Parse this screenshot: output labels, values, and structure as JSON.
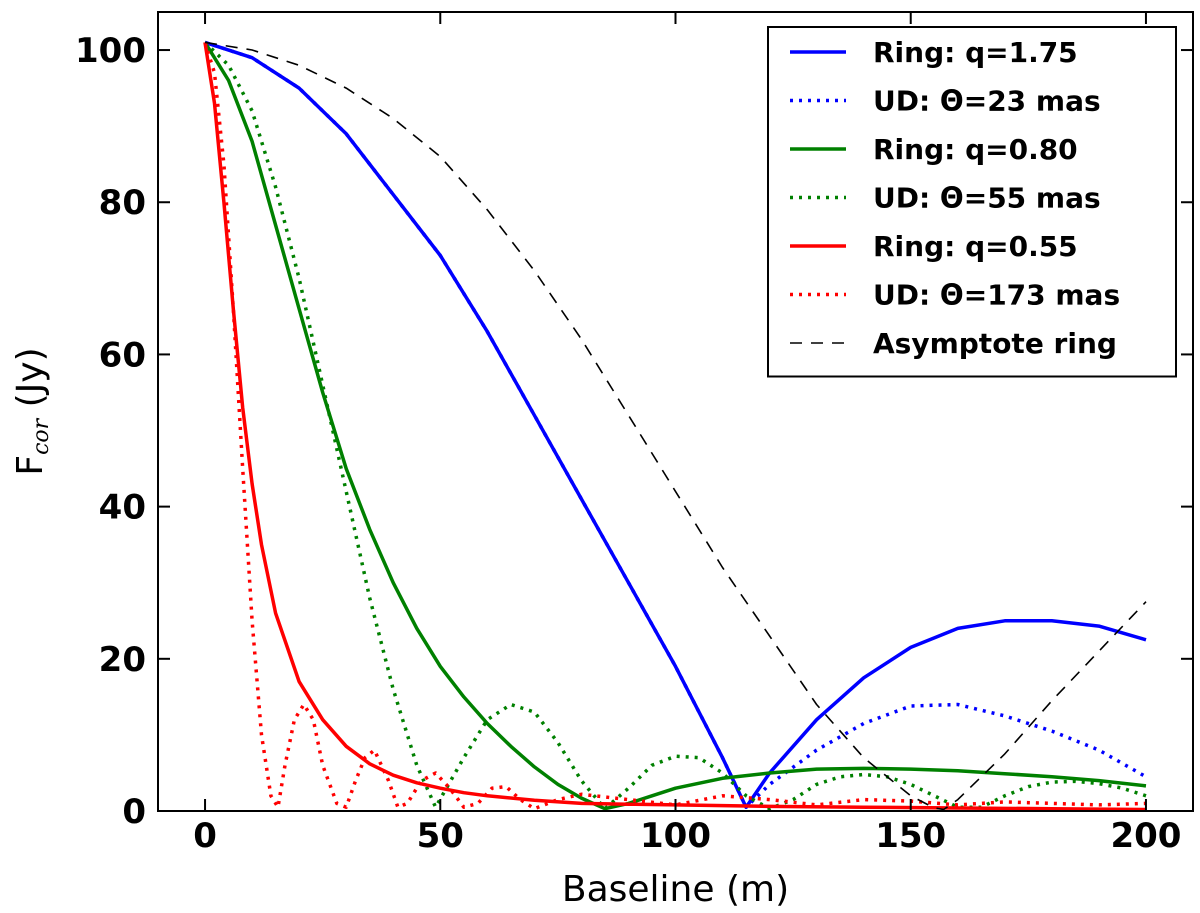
{
  "chart_data": {
    "type": "line",
    "xlabel": "Baseline (m)",
    "ylabel_main": "F",
    "ylabel_sub": "cor",
    "ylabel_unit": " (Jy)",
    "xlim": [
      -10,
      210
    ],
    "ylim": [
      0,
      105
    ],
    "xticks": [
      0,
      50,
      100,
      150,
      200
    ],
    "yticks": [
      0,
      20,
      40,
      60,
      80,
      100
    ],
    "grid": false,
    "legend_position": "top-right",
    "series": [
      {
        "name": "Ring: q=1.75",
        "color": "#0000ff",
        "style": "solid",
        "x": [
          0,
          10,
          20,
          30,
          40,
          50,
          60,
          70,
          80,
          90,
          100,
          110,
          115,
          120,
          130,
          140,
          150,
          160,
          170,
          180,
          190,
          200
        ],
        "y": [
          101,
          99,
          95,
          89,
          81,
          73,
          63,
          52,
          41,
          30,
          19,
          7,
          0.5,
          5,
          12,
          17.5,
          21.5,
          24,
          25,
          25,
          24.3,
          22.5
        ]
      },
      {
        "name": "UD: Θ=23 mas",
        "color": "#0000ff",
        "style": "dotted",
        "x": [
          0,
          10,
          20,
          30,
          40,
          50,
          60,
          70,
          80,
          90,
          100,
          110,
          115,
          120,
          130,
          140,
          150,
          160,
          170,
          180,
          190,
          200
        ],
        "y": [
          101,
          99,
          95,
          89,
          81,
          73,
          63,
          52,
          41,
          30,
          19,
          7,
          0.5,
          3.5,
          8,
          11.5,
          13.8,
          14,
          12.5,
          10.5,
          8,
          4.5
        ]
      },
      {
        "name": "Ring: q=0.80",
        "color": "#008000",
        "style": "solid",
        "x": [
          0,
          5,
          10,
          15,
          20,
          25,
          30,
          35,
          40,
          45,
          50,
          55,
          60,
          65,
          70,
          75,
          80,
          85,
          90,
          95,
          100,
          110,
          120,
          130,
          140,
          150,
          160,
          170,
          180,
          190,
          200
        ],
        "y": [
          101,
          96,
          88,
          77,
          66,
          55,
          45,
          37,
          30,
          24,
          19,
          15,
          11.5,
          8.5,
          5.8,
          3.5,
          1.7,
          0.3,
          1,
          2,
          3,
          4.3,
          5,
          5.5,
          5.6,
          5.5,
          5.3,
          4.9,
          4.5,
          4,
          3.3
        ]
      },
      {
        "name": "UD: Θ=55 mas",
        "color": "#008000",
        "style": "dotted",
        "x": [
          0,
          5,
          10,
          15,
          20,
          25,
          30,
          35,
          40,
          45,
          49,
          55,
          60,
          65,
          70,
          75,
          80,
          85,
          90,
          95,
          100,
          105,
          110,
          115,
          120,
          125,
          130,
          135,
          140,
          145,
          150,
          155,
          160,
          165,
          170,
          175,
          180,
          185,
          190,
          195,
          200
        ],
        "y": [
          101,
          98,
          92,
          82,
          70,
          56,
          42,
          28,
          16,
          6,
          0.5,
          7,
          12,
          14,
          13,
          9,
          4,
          0.3,
          3,
          6,
          7.2,
          7,
          5,
          2,
          0.3,
          1.5,
          3.5,
          4.5,
          4.8,
          4.5,
          3.5,
          2,
          0.5,
          0.5,
          2,
          3.2,
          3.8,
          3.9,
          3.6,
          3,
          2
        ]
      },
      {
        "name": "Ring: q=0.55",
        "color": "#ff0000",
        "style": "solid",
        "x": [
          0,
          2,
          4,
          6,
          8,
          10,
          12,
          15,
          20,
          25,
          30,
          35,
          40,
          45,
          50,
          55,
          60,
          70,
          80,
          90,
          100,
          120,
          140,
          160,
          180,
          200
        ],
        "y": [
          101,
          93,
          80,
          66,
          53,
          43,
          35,
          26,
          17,
          12,
          8.5,
          6.2,
          4.7,
          3.7,
          3,
          2.4,
          2,
          1.4,
          1,
          0.9,
          0.8,
          0.6,
          0.5,
          0.4,
          0.3,
          0.2
        ]
      },
      {
        "name": "UD: Θ=173 mas",
        "color": "#ff0000",
        "style": "dotted",
        "x": [
          0,
          2,
          4,
          6,
          8,
          10,
          12,
          14,
          15.5,
          17,
          19,
          21,
          23,
          25,
          28,
          30,
          32,
          34,
          36,
          39,
          41,
          43,
          46,
          49,
          52,
          55,
          58,
          61,
          64,
          67,
          70,
          75,
          80,
          90,
          100,
          110,
          120,
          130,
          140,
          150,
          160,
          170,
          180,
          190,
          200
        ],
        "y": [
          101,
          97,
          85,
          66,
          45,
          25,
          10,
          2,
          0.5,
          6,
          12,
          14,
          12,
          6,
          1,
          0.5,
          4,
          7,
          8,
          4,
          0.5,
          1,
          4,
          5,
          3,
          0.5,
          1,
          3,
          3.2,
          1.5,
          0.3,
          1.5,
          2.2,
          1.5,
          0.8,
          2,
          1.5,
          0.8,
          1.5,
          1.3,
          0.8,
          1.2,
          1,
          0.8,
          1
        ]
      },
      {
        "name": "Asymptote ring",
        "color": "#000000",
        "style": "dashed",
        "x": [
          0,
          10,
          20,
          30,
          40,
          50,
          60,
          70,
          80,
          90,
          100,
          110,
          120,
          130,
          140,
          150,
          155,
          157,
          160,
          170,
          180,
          190,
          200
        ],
        "y": [
          101,
          100,
          98,
          95,
          91,
          86,
          79,
          71,
          62,
          52,
          42,
          32,
          23,
          14,
          7,
          2,
          0.4,
          0.2,
          1.5,
          7.5,
          14.5,
          21,
          27.5
        ]
      }
    ]
  }
}
